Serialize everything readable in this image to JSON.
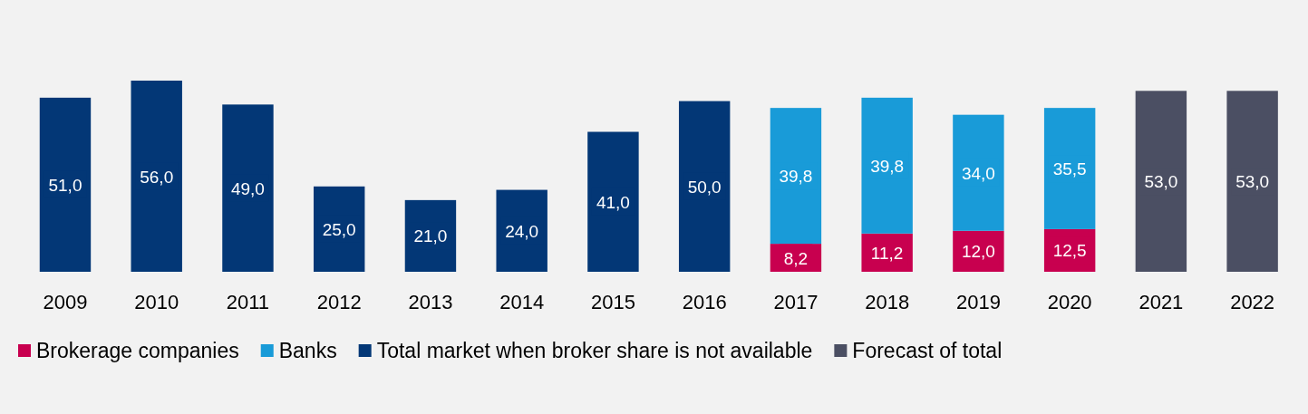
{
  "chart_data": {
    "type": "bar",
    "stacked": true,
    "legend": "bottom",
    "categories": [
      "2009",
      "2010",
      "2011",
      "2012",
      "2013",
      "2014",
      "2015",
      "2016",
      "2017",
      "2018",
      "2019",
      "2020",
      "2021",
      "2022"
    ],
    "series": [
      {
        "name": "Brokerage companies",
        "color": "#c8004f",
        "values": [
          null,
          null,
          null,
          null,
          null,
          null,
          null,
          null,
          8.2,
          11.2,
          12.0,
          12.5,
          null,
          null
        ],
        "value_labels": [
          null,
          null,
          null,
          null,
          null,
          null,
          null,
          null,
          "8,2",
          "11,2",
          "12,0",
          "12,5",
          null,
          null
        ]
      },
      {
        "name": "Banks",
        "color": "#199bd8",
        "values": [
          null,
          null,
          null,
          null,
          null,
          null,
          null,
          null,
          39.8,
          39.8,
          34.0,
          35.5,
          null,
          null
        ],
        "value_labels": [
          null,
          null,
          null,
          null,
          null,
          null,
          null,
          null,
          "39,8",
          "39,8",
          "34,0",
          "35,5",
          null,
          null
        ]
      },
      {
        "name": "Total market when broker share is not available",
        "color": "#033776",
        "values": [
          51.0,
          56.0,
          49.0,
          25.0,
          21.0,
          24.0,
          41.0,
          50.0,
          null,
          null,
          null,
          null,
          null,
          null
        ],
        "value_labels": [
          "51,0",
          "56,0",
          "49,0",
          "25,0",
          "21,0",
          "24,0",
          "41,0",
          "50,0",
          null,
          null,
          null,
          null,
          null,
          null
        ]
      },
      {
        "name": "Forecast of total",
        "color": "#4b4f63",
        "values": [
          null,
          null,
          null,
          null,
          null,
          null,
          null,
          null,
          null,
          null,
          null,
          null,
          53.0,
          53.0
        ],
        "value_labels": [
          null,
          null,
          null,
          null,
          null,
          null,
          null,
          null,
          null,
          null,
          null,
          null,
          "53,0",
          "53,0"
        ]
      }
    ]
  }
}
